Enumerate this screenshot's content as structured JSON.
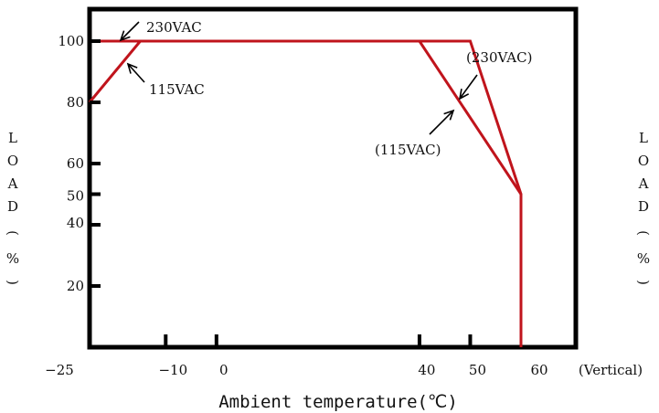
{
  "chart_data": {
    "type": "line",
    "xlabel": "Ambient temperature(℃)",
    "ylabel": "LOAD(%)",
    "ylabel_chars": [
      "L",
      "O",
      "A",
      "D",
      "(",
      "%",
      ")"
    ],
    "x_ticks": [
      {
        "value": -25,
        "label": "−25"
      },
      {
        "value": -10,
        "label": "−10"
      },
      {
        "value": 0,
        "label": "0"
      },
      {
        "value": 40,
        "label": "40"
      },
      {
        "value": 50,
        "label": "50"
      },
      {
        "value": 60,
        "label": "60"
      }
    ],
    "x_suffix_label": "(Vertical)",
    "y_ticks": [
      {
        "value": 20,
        "label": "20"
      },
      {
        "value": 40,
        "label": "40"
      },
      {
        "value": 50,
        "label": "50"
      },
      {
        "value": 60,
        "label": "60"
      },
      {
        "value": 80,
        "label": "80"
      },
      {
        "value": 100,
        "label": "100"
      }
    ],
    "series": [
      {
        "name": "230VAC",
        "x": [
          -23,
          50,
          60,
          60
        ],
        "y": [
          100,
          100,
          50,
          0
        ]
      },
      {
        "name": "115VAC",
        "x": [
          -25,
          -15,
          40,
          60
        ],
        "y": [
          80,
          100,
          100,
          50
        ]
      }
    ],
    "annotations": [
      {
        "text": "230VAC",
        "series": "230VAC"
      },
      {
        "text": "115VAC",
        "series": "115VAC"
      },
      {
        "text": "(230VAC)",
        "series": "230VAC"
      },
      {
        "text": "(115VAC)",
        "series": "115VAC"
      }
    ],
    "grid": false,
    "line_color": "#c0141c",
    "frame_color": "#000000"
  }
}
